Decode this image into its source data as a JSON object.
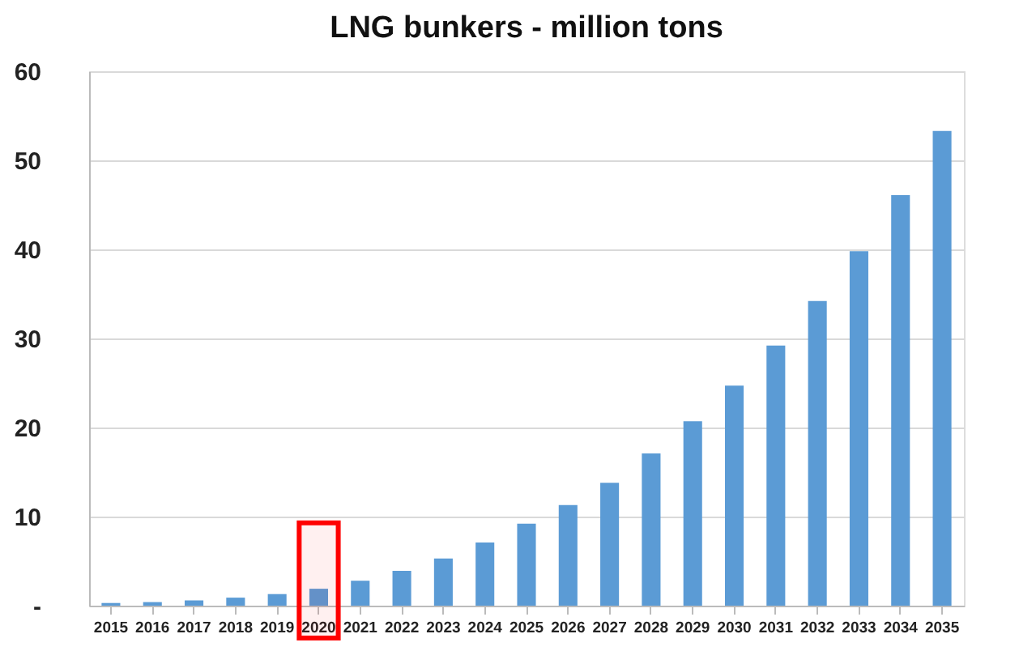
{
  "chart_data": {
    "type": "bar",
    "title": "LNG bunkers - million tons",
    "categories": [
      "2015",
      "2016",
      "2017",
      "2018",
      "2019",
      "2020",
      "2021",
      "2022",
      "2023",
      "2024",
      "2025",
      "2026",
      "2027",
      "2028",
      "2029",
      "2030",
      "2031",
      "2032",
      "2033",
      "2034",
      "2035"
    ],
    "values": [
      0.3,
      0.4,
      0.6,
      0.9,
      1.3,
      1.9,
      2.8,
      3.9,
      5.3,
      7.1,
      9.2,
      11.3,
      13.8,
      17.1,
      20.7,
      24.7,
      29.2,
      34.2,
      39.8,
      46.1,
      53.3
    ],
    "color": "#5b9bd5",
    "ylim": [
      0,
      60
    ],
    "yticks": [
      {
        "value": 0,
        "label": "-"
      },
      10,
      20,
      30,
      40,
      50,
      60
    ],
    "grid": "y",
    "bands": [
      {
        "axis": "x",
        "from": "2020",
        "to": "2020",
        "color": "#ff0000"
      }
    ]
  }
}
